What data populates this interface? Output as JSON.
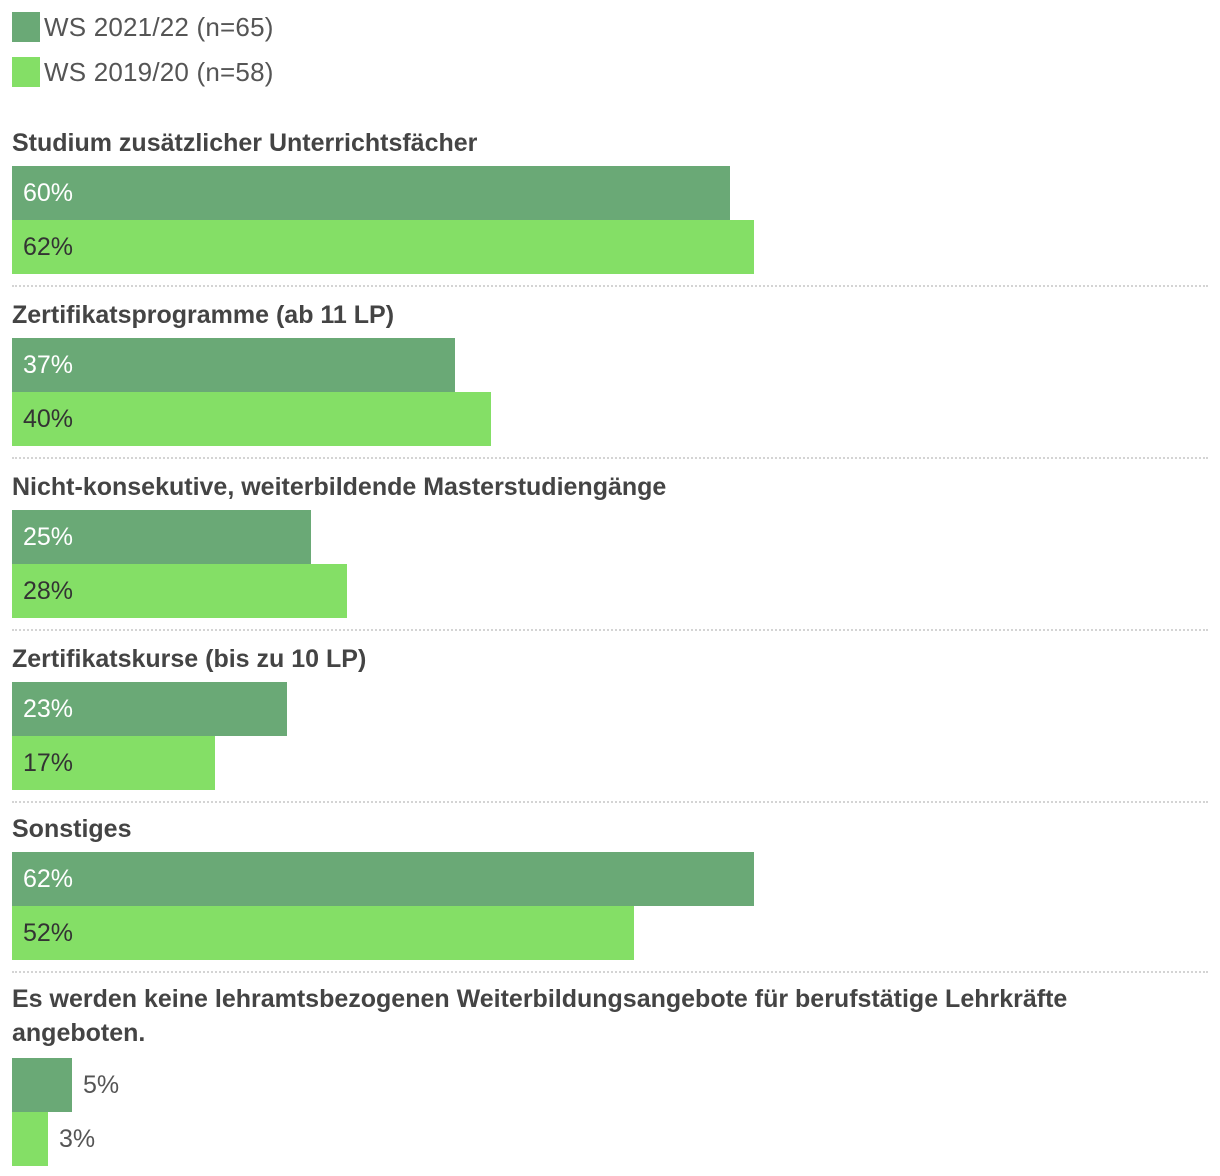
{
  "chart_data": {
    "type": "bar",
    "orientation": "horizontal",
    "unit": "%",
    "xlim": [
      0,
      100
    ],
    "series": [
      {
        "name": "WS 2021/22 (n=65)",
        "color": "#6aa976",
        "values": [
          60,
          37,
          25,
          23,
          62,
          5
        ]
      },
      {
        "name": "WS 2019/20 (n=58)",
        "color": "#84df66",
        "values": [
          62,
          40,
          28,
          17,
          52,
          3
        ]
      }
    ],
    "categories": [
      "Studium zusätzlicher Unterrichtsfächer",
      "Zertifikatsprogramme (ab 11 LP)",
      "Nicht-konsekutive, weiterbildende Masterstudiengänge",
      "Zertifikatskurse (bis zu 10 LP)",
      "Sonstiges",
      "Es werden keine lehramtsbezogenen Weiterbildungsangebote für berufstätige Lehrkräfte angeboten."
    ],
    "value_labels": [
      [
        "60%",
        "62%"
      ],
      [
        "37%",
        "40%"
      ],
      [
        "25%",
        "28%"
      ],
      [
        "23%",
        "17%"
      ],
      [
        "62%",
        "52%"
      ],
      [
        "5%",
        "3%"
      ]
    ],
    "legend_position": "top-left",
    "grid": false
  }
}
